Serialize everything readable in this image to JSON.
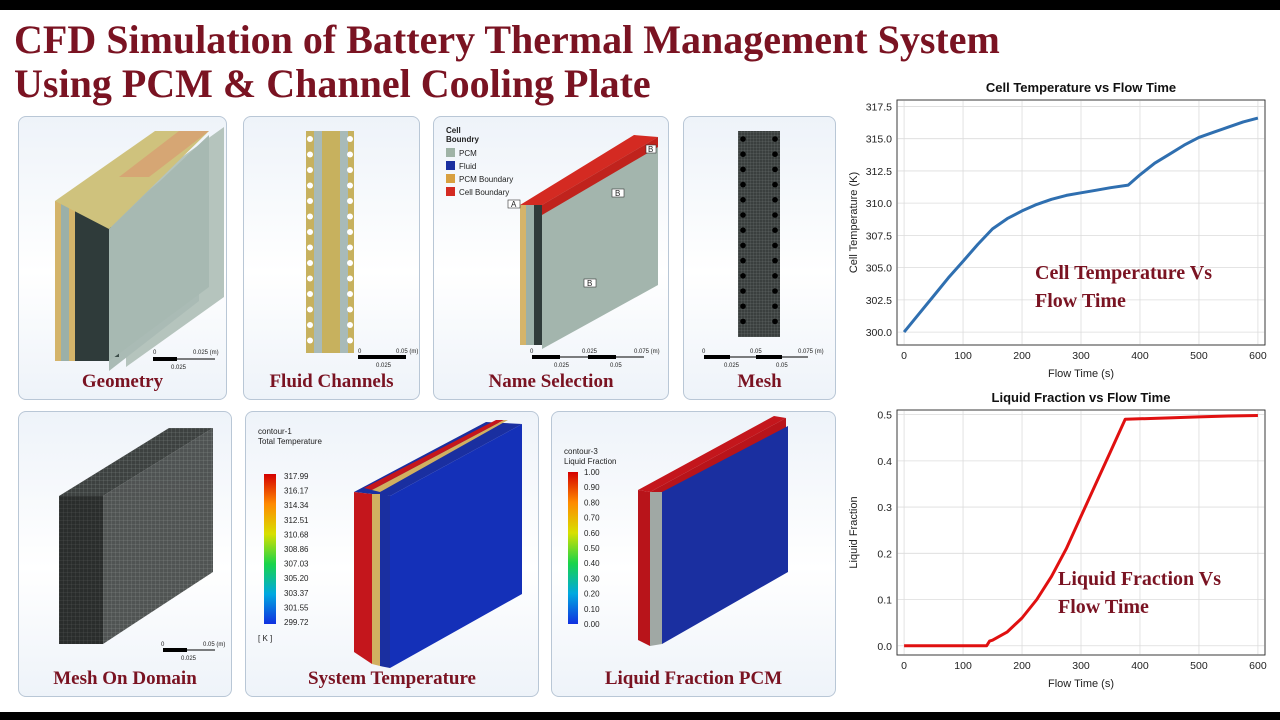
{
  "title": {
    "line1": "CFD Simulation of Battery Thermal Management System",
    "line2": "Using PCM & Channel Cooling Plate"
  },
  "panels": {
    "geometry": {
      "label": "Geometry",
      "scale": [
        "0",
        "0.025 (m)",
        "0.025"
      ]
    },
    "fluid_channels": {
      "label": "Fluid Channels",
      "scale": [
        "0",
        "0.05 (m)",
        "0.025"
      ]
    },
    "name_selection": {
      "label": "Name Selection",
      "legend_title": [
        "Cell",
        "Boundry"
      ],
      "legend_items": [
        "PCM",
        "Fluid",
        "PCM Boundary",
        "Cell Boundary"
      ],
      "markers": [
        "A",
        "B",
        "B",
        "B"
      ],
      "scale": [
        "0",
        "0.025",
        "0.075 (m)",
        "0.025",
        "0.05"
      ]
    },
    "mesh": {
      "label": "Mesh",
      "scale": [
        "0",
        "0.05",
        "0.075 (m)",
        "0.025",
        "0.05"
      ]
    },
    "mesh_on_domain": {
      "label": "Mesh On Domain",
      "scale": [
        "0",
        "0.05 (m)",
        "0.025"
      ]
    },
    "system_temperature": {
      "label": "System Temperature",
      "contour_title": [
        "contour-1",
        "Total Temperature"
      ],
      "levels": [
        "317.99",
        "316.17",
        "314.34",
        "312.51",
        "310.68",
        "308.86",
        "307.03",
        "305.20",
        "303.37",
        "301.55",
        "299.72"
      ],
      "unit": "[ K ]"
    },
    "liquid_fraction_pcm": {
      "label": "Liquid Fraction PCM",
      "contour_title": [
        "contour-3",
        "Liquid Fraction"
      ],
      "levels": [
        "1.00",
        "0.90",
        "0.80",
        "0.70",
        "0.60",
        "0.50",
        "0.40",
        "0.30",
        "0.20",
        "0.10",
        "0.00"
      ]
    }
  },
  "colors": {
    "title": "#7a1322",
    "temp_line": "#2f6fb0",
    "lf_line": "#e01010",
    "pcm": "#9fb3a6",
    "fluid": "#1a2fa0",
    "pcm_boundary": "#d8a040",
    "cell_boundary": "#d42a22"
  },
  "chart_data": [
    {
      "type": "line",
      "title": "Cell Temperature vs Flow Time",
      "xlabel": "Flow Time (s)",
      "ylabel": "Cell Temperature (K)",
      "annotation": [
        "Cell Temperature Vs",
        "Flow Time"
      ],
      "xlim": [
        -12,
        612
      ],
      "ylim": [
        299,
        318
      ],
      "xticks": [
        0,
        100,
        200,
        300,
        400,
        500,
        600
      ],
      "yticks": [
        "300.0",
        "302.5",
        "305.0",
        "307.5",
        "310.0",
        "312.5",
        "315.0",
        "317.5"
      ],
      "grid": true,
      "x": [
        0,
        25,
        50,
        75,
        100,
        125,
        150,
        175,
        200,
        225,
        250,
        275,
        300,
        325,
        350,
        380,
        400,
        425,
        450,
        475,
        500,
        525,
        550,
        575,
        600
      ],
      "y": [
        300.0,
        301.4,
        302.8,
        304.2,
        305.5,
        306.8,
        308.0,
        308.8,
        309.4,
        309.9,
        310.3,
        310.6,
        310.8,
        311.0,
        311.2,
        311.4,
        312.2,
        313.1,
        313.8,
        314.5,
        315.1,
        315.5,
        315.9,
        316.3,
        316.6
      ]
    },
    {
      "type": "line",
      "title": "Liquid Fraction vs Flow Time",
      "xlabel": "Flow Time (s)",
      "ylabel": "Liquid Fraction",
      "annotation": [
        "Liquid Fraction Vs",
        "Flow Time"
      ],
      "xlim": [
        -12,
        612
      ],
      "ylim": [
        -0.02,
        0.51
      ],
      "xticks": [
        0,
        100,
        200,
        300,
        400,
        500,
        600
      ],
      "yticks": [
        "0.0",
        "0.1",
        "0.2",
        "0.3",
        "0.4",
        "0.5"
      ],
      "grid": true,
      "x": [
        0,
        100,
        140,
        145,
        150,
        175,
        200,
        225,
        250,
        275,
        300,
        325,
        350,
        375,
        400,
        450,
        500,
        550,
        600
      ],
      "y": [
        0.0,
        0.0,
        0.0,
        0.01,
        0.012,
        0.03,
        0.06,
        0.1,
        0.15,
        0.21,
        0.28,
        0.35,
        0.42,
        0.49,
        0.491,
        0.493,
        0.495,
        0.497,
        0.498
      ]
    }
  ]
}
